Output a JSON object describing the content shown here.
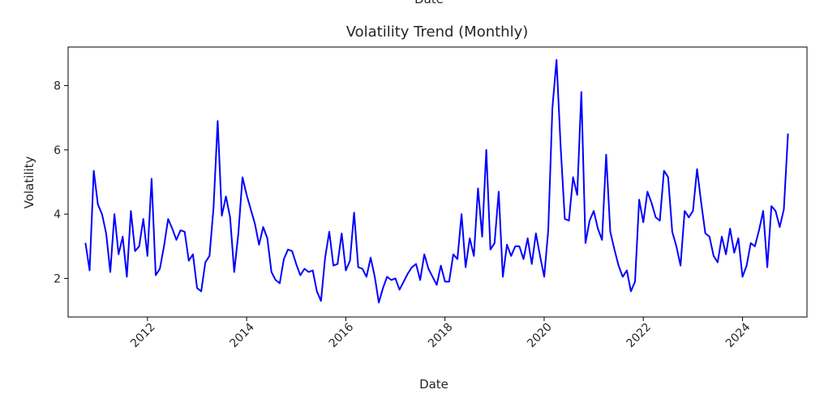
{
  "chart_data": {
    "type": "line",
    "top_clipped_text": "Date",
    "title": "Volatility Trend (Monthly)",
    "xlabel": "Date",
    "ylabel": "Volatility",
    "x_range": [
      2010.4,
      2025.3
    ],
    "ylim": [
      0.8,
      9.2
    ],
    "x_ticks": [
      2012,
      2014,
      2016,
      2018,
      2020,
      2022,
      2024
    ],
    "x_tick_labels": [
      "2012",
      "2014",
      "2016",
      "2018",
      "2020",
      "2022",
      "2024"
    ],
    "y_ticks": [
      2,
      4,
      6,
      8
    ],
    "y_tick_labels": [
      "2",
      "4",
      "6",
      "8"
    ],
    "grid": false,
    "line_color": "#0000ff",
    "series": [
      {
        "x": [
          "2010-10",
          "2010-11",
          "2010-12",
          "2011-01",
          "2011-02",
          "2011-03",
          "2011-04",
          "2011-05",
          "2011-06",
          "2011-07",
          "2011-08",
          "2011-09",
          "2011-10",
          "2011-11",
          "2011-12",
          "2012-01",
          "2012-02",
          "2012-03",
          "2012-04",
          "2012-05",
          "2012-06",
          "2012-07",
          "2012-08",
          "2012-09",
          "2012-10",
          "2012-11",
          "2012-12",
          "2013-01",
          "2013-02",
          "2013-03",
          "2013-04",
          "2013-05",
          "2013-06",
          "2013-07",
          "2013-08",
          "2013-09",
          "2013-10",
          "2013-11",
          "2013-12",
          "2014-01",
          "2014-02",
          "2014-03",
          "2014-04",
          "2014-05",
          "2014-06",
          "2014-07",
          "2014-08",
          "2014-09",
          "2014-10",
          "2014-11",
          "2014-12",
          "2015-01",
          "2015-02",
          "2015-03",
          "2015-04",
          "2015-05",
          "2015-06",
          "2015-07",
          "2015-08",
          "2015-09",
          "2015-10",
          "2015-11",
          "2015-12",
          "2016-01",
          "2016-02",
          "2016-03",
          "2016-04",
          "2016-05",
          "2016-06",
          "2016-07",
          "2016-08",
          "2016-09",
          "2016-10",
          "2016-11",
          "2016-12",
          "2017-01",
          "2017-02",
          "2017-03",
          "2017-04",
          "2017-05",
          "2017-06",
          "2017-07",
          "2017-08",
          "2017-09",
          "2017-10",
          "2017-11",
          "2017-12",
          "2018-01",
          "2018-02",
          "2018-03",
          "2018-04",
          "2018-05",
          "2018-06",
          "2018-07",
          "2018-08",
          "2018-09",
          "2018-10",
          "2018-11",
          "2018-12",
          "2019-01",
          "2019-02",
          "2019-03",
          "2019-04",
          "2019-05",
          "2019-06",
          "2019-07",
          "2019-08",
          "2019-09",
          "2019-10",
          "2019-11",
          "2019-12",
          "2020-01",
          "2020-02",
          "2020-03",
          "2020-04",
          "2020-05",
          "2020-06",
          "2020-07",
          "2020-08",
          "2020-09",
          "2020-10",
          "2020-11",
          "2020-12",
          "2021-01",
          "2021-02",
          "2021-03",
          "2021-04",
          "2021-05",
          "2021-06",
          "2021-07",
          "2021-08",
          "2021-09",
          "2021-10",
          "2021-11",
          "2021-12",
          "2022-01",
          "2022-02",
          "2022-03",
          "2022-04",
          "2022-05",
          "2022-06",
          "2022-07",
          "2022-08",
          "2022-09",
          "2022-10",
          "2022-11",
          "2022-12",
          "2023-01",
          "2023-02",
          "2023-03",
          "2023-04",
          "2023-05",
          "2023-06",
          "2023-07",
          "2023-08",
          "2023-09",
          "2023-10",
          "2023-11",
          "2023-12",
          "2024-01",
          "2024-02",
          "2024-03",
          "2024-04",
          "2024-05",
          "2024-06",
          "2024-07",
          "2024-08",
          "2024-09",
          "2024-10",
          "2024-11",
          "2024-12"
        ],
        "values": [
          3.1,
          2.25,
          5.35,
          4.3,
          4.0,
          3.4,
          2.2,
          4.0,
          2.75,
          3.3,
          2.05,
          4.1,
          2.85,
          3.0,
          3.85,
          2.7,
          5.1,
          2.1,
          2.3,
          3.0,
          3.85,
          3.55,
          3.2,
          3.5,
          3.45,
          2.55,
          2.75,
          1.7,
          1.6,
          2.5,
          2.7,
          4.2,
          6.9,
          3.95,
          4.55,
          3.9,
          2.2,
          3.4,
          5.15,
          4.6,
          4.15,
          3.7,
          3.05,
          3.6,
          3.25,
          2.2,
          1.95,
          1.85,
          2.6,
          2.9,
          2.85,
          2.45,
          2.1,
          2.3,
          2.2,
          2.25,
          1.6,
          1.3,
          2.65,
          3.45,
          2.4,
          2.45,
          3.4,
          2.25,
          2.55,
          4.05,
          2.35,
          2.3,
          2.05,
          2.65,
          2.05,
          1.25,
          1.7,
          2.05,
          1.95,
          2.0,
          1.65,
          1.9,
          2.15,
          2.35,
          2.45,
          1.95,
          2.75,
          2.3,
          2.05,
          1.8,
          2.4,
          1.9,
          1.9,
          2.75,
          2.6,
          4.0,
          2.35,
          3.25,
          2.7,
          4.8,
          3.3,
          6.0,
          2.9,
          3.1,
          4.7,
          2.05,
          3.05,
          2.7,
          3.0,
          3.0,
          2.6,
          3.25,
          2.45,
          3.4,
          2.7,
          2.05,
          3.5,
          7.3,
          8.8,
          6.1,
          3.85,
          3.8,
          5.15,
          4.6,
          7.8,
          3.1,
          3.8,
          4.1,
          3.55,
          3.2,
          5.85,
          3.45,
          2.9,
          2.4,
          2.05,
          2.25,
          1.6,
          1.9,
          4.45,
          3.75,
          4.7,
          4.35,
          3.9,
          3.8,
          5.35,
          5.15,
          3.45,
          3.0,
          2.4,
          4.1,
          3.9,
          4.1,
          5.4,
          4.35,
          3.4,
          3.3,
          2.7,
          2.5,
          3.3,
          2.75,
          3.55,
          2.8,
          3.25,
          2.05,
          2.4,
          3.1,
          3.0,
          3.5,
          4.1,
          2.35,
          4.25,
          4.1,
          3.6,
          4.15,
          6.5
        ]
      }
    ]
  }
}
